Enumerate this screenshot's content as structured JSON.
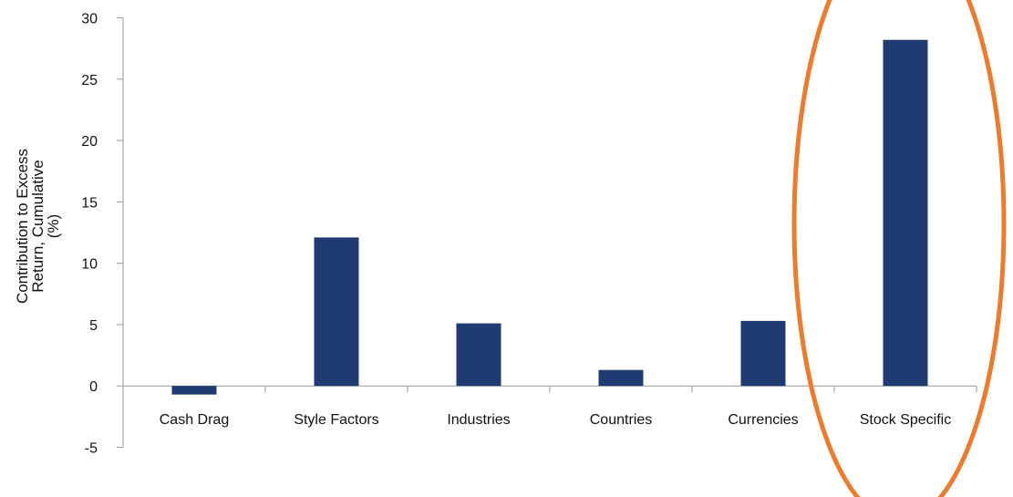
{
  "chart_data": {
    "type": "bar",
    "categories": [
      "Cash Drag",
      "Style Factors",
      "Industries",
      "Countries",
      "Currencies",
      "Stock Specific"
    ],
    "values": [
      -0.7,
      12.1,
      5.1,
      1.3,
      5.3,
      28.2
    ],
    "ylabel_lines": [
      "Contribution to Excess",
      "Return, Cumulative",
      "(%)"
    ],
    "ylim": [
      -5,
      30
    ],
    "yticks": [
      -5,
      0,
      5,
      10,
      15,
      20,
      25,
      30
    ],
    "grid": false,
    "legend": "none",
    "highlight": "Stock Specific"
  },
  "colors": {
    "bar": "#203A72",
    "highlight_ellipse": "#EE7A2C",
    "axis": "#9A9A9A"
  }
}
